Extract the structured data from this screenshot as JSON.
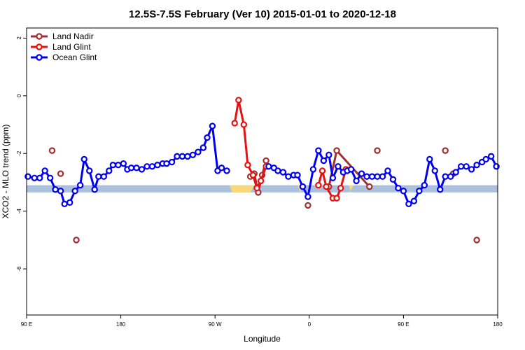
{
  "chart_data": {
    "type": "line",
    "title": "12.5S-7.5S February (Ver 10)   2015-01-01 to 2020-12-18",
    "xlabel": "Longitude",
    "ylabel": "XCO2 - MLO trend (ppm)",
    "xlim": [
      90,
      450
    ],
    "ylim": [
      -7.6,
      2.35
    ],
    "x_ticks": [
      {
        "value": 90,
        "label": "90 E"
      },
      {
        "value": 162,
        "label": "180"
      },
      {
        "value": 234,
        "label": "90 W"
      },
      {
        "value": 306,
        "label": "0"
      },
      {
        "value": 378,
        "label": "90 E"
      },
      {
        "value": 450,
        "label": "180"
      }
    ],
    "y_ticks": [
      {
        "value": 2,
        "label": "2"
      },
      {
        "value": 0,
        "label": "0"
      },
      {
        "value": -2,
        "label": "-2"
      },
      {
        "value": -4,
        "label": "-4"
      },
      {
        "value": -6,
        "label": "-6"
      }
    ],
    "legend_position": "top-left",
    "land_band": {
      "y_min": -3.35,
      "y_max": -3.1,
      "color": "#aac0dc",
      "highlight_color": "#fad77a",
      "highlights": [
        [
          245,
          264
        ],
        [
          297,
          302
        ],
        [
          336,
          340
        ]
      ]
    },
    "series": [
      {
        "name": "Land Nadir",
        "color": "#a03030",
        "x": [
          109.5,
          116,
          128,
          261,
          264,
          267,
          270,
          273,
          305,
          321,
          327,
          352,
          358,
          410,
          416,
          434
        ],
        "y": [
          -1.9,
          -2.7,
          -5.0,
          -2.8,
          -2.7,
          -3.35,
          -2.75,
          -2.25,
          -3.8,
          -3.15,
          -1.9,
          -3.15,
          -1.9,
          -1.9,
          -2.7,
          -5.0
        ],
        "connected": [
          [
            261,
            264,
            267,
            270,
            273
          ],
          [
            321,
            327,
            352
          ]
        ]
      },
      {
        "name": "Land Glint",
        "color": "#e81010",
        "x": [
          249,
          252,
          256,
          259,
          263,
          266,
          269,
          273,
          313,
          316,
          319,
          324,
          327,
          330,
          334
        ],
        "y": [
          -0.95,
          -0.15,
          -1.0,
          -2.4,
          -2.75,
          -3.2,
          -2.95,
          -2.45,
          -3.1,
          -2.6,
          -3.15,
          -3.55,
          -3.55,
          -3.2,
          -2.55
        ],
        "connected": [
          [
            249,
            252,
            256,
            259,
            263,
            266,
            269,
            273
          ],
          [
            313,
            316,
            319,
            324,
            327,
            330,
            334
          ]
        ]
      },
      {
        "name": "Ocean Glint",
        "color": "#0000ee",
        "x": [
          91,
          96,
          100,
          104,
          108,
          112,
          116,
          119,
          123,
          127,
          131,
          134,
          138,
          142,
          145,
          149,
          153,
          156,
          160,
          164,
          167,
          170,
          174,
          178,
          182,
          186,
          190,
          194,
          197,
          201,
          205,
          209,
          213,
          217,
          221,
          225,
          228,
          232,
          236,
          239,
          243,
          275,
          279,
          282,
          286,
          290,
          294,
          297,
          301,
          305,
          309,
          313,
          317,
          321,
          324,
          328,
          332,
          335,
          338,
          342,
          346,
          350,
          354,
          358,
          362,
          366,
          370,
          374,
          378,
          382,
          386,
          390,
          394,
          398,
          402,
          406,
          410,
          414,
          418,
          422,
          426,
          430,
          434,
          438,
          441,
          445,
          449
        ],
        "y": [
          -2.8,
          -2.85,
          -2.85,
          -2.6,
          -2.85,
          -3.25,
          -3.3,
          -3.75,
          -3.7,
          -3.3,
          -3.1,
          -2.2,
          -2.6,
          -3.25,
          -2.8,
          -2.8,
          -2.6,
          -2.4,
          -2.4,
          -2.35,
          -2.55,
          -2.5,
          -2.5,
          -2.55,
          -2.45,
          -2.45,
          -2.4,
          -2.35,
          -2.35,
          -2.3,
          -2.1,
          -2.1,
          -2.1,
          -2.05,
          -1.95,
          -1.8,
          -1.45,
          -1.05,
          -2.6,
          -2.5,
          -2.6,
          -2.45,
          -2.5,
          -2.6,
          -2.65,
          -2.8,
          -2.75,
          -2.75,
          -3.15,
          -3.5,
          -2.55,
          -1.9,
          -2.25,
          -2.05,
          -2.85,
          -2.45,
          -2.65,
          -2.6,
          -2.55,
          -2.95,
          -2.7,
          -2.8,
          -2.8,
          -2.8,
          -2.8,
          -2.6,
          -2.9,
          -3.2,
          -3.3,
          -3.75,
          -3.65,
          -3.3,
          -3.1,
          -2.2,
          -2.6,
          -3.25,
          -2.8,
          -2.8,
          -2.65,
          -2.45,
          -2.45,
          -2.55,
          -2.4,
          -2.3,
          -2.2,
          -2.1,
          -2.45
        ],
        "segments": [
          [
            0,
            40
          ],
          [
            41,
            86
          ]
        ]
      }
    ]
  }
}
